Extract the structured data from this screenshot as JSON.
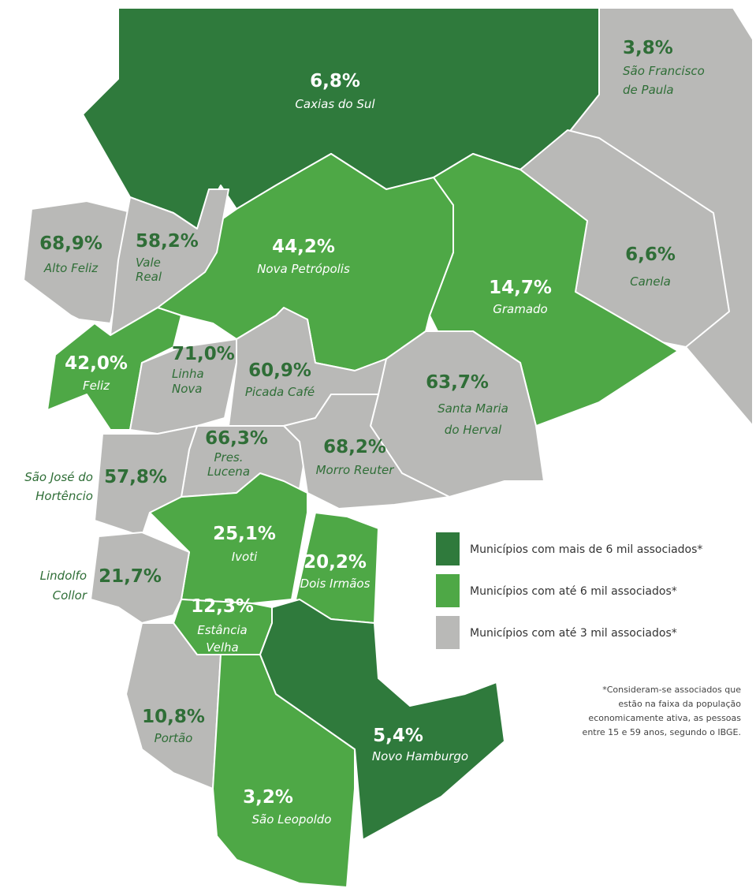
{
  "map": {
    "legend": [
      {
        "color": "#2f7a3c",
        "label": "Municípios com mais de 6 mil associados*"
      },
      {
        "color": "#4ea846",
        "label": "Municípios com até 6 mil associados*"
      },
      {
        "color": "#b9b9b7",
        "label": "Municípios com até 3 mil associados*"
      }
    ],
    "footnote": [
      "*Consideram-se associados que",
      "estão na faixa da população",
      "economicamente ativa, as pessoas",
      "entre 15 e 59 anos, segundo o IBGE."
    ],
    "regions": [
      {
        "value": "6,8%",
        "name": [
          "Caxias do Sul"
        ],
        "legend": 0
      },
      {
        "value": "3,8%",
        "name": [
          "São Francisco",
          "de Paula"
        ],
        "legend": 2
      },
      {
        "value": "6,6%",
        "name": [
          "Canela"
        ],
        "legend": 2
      },
      {
        "value": "14,7%",
        "name": [
          "Gramado"
        ],
        "legend": 1
      },
      {
        "value": "44,2%",
        "name": [
          "Nova Petrópolis"
        ],
        "legend": 1
      },
      {
        "value": "68,9%",
        "name": [
          "Alto Feliz"
        ],
        "legend": 2
      },
      {
        "value": "58,2%",
        "name": [
          "Vale",
          "Real"
        ],
        "legend": 2
      },
      {
        "value": "42,0%",
        "name": [
          "Feliz"
        ],
        "legend": 1
      },
      {
        "value": "71,0%",
        "name": [
          "Linha",
          "Nova"
        ],
        "legend": 2
      },
      {
        "value": "60,9%",
        "name": [
          "Picada Café"
        ],
        "legend": 2
      },
      {
        "value": "63,7%",
        "name": [
          "Santa Maria",
          "do Herval"
        ],
        "legend": 2
      },
      {
        "value": "66,3%",
        "name": [
          "Pres.",
          "Lucena"
        ],
        "legend": 2
      },
      {
        "value": "68,2%",
        "name": [
          "Morro Reuter"
        ],
        "legend": 2
      },
      {
        "value": "57,8%",
        "name": [
          "São José do",
          "Hortêncio"
        ],
        "legend": 2
      },
      {
        "value": "25,1%",
        "name": [
          "Ivoti"
        ],
        "legend": 1
      },
      {
        "value": "20,2%",
        "name": [
          "Dois Irmãos"
        ],
        "legend": 1
      },
      {
        "value": "21,7%",
        "name": [
          "Lindolfo",
          "Collor"
        ],
        "legend": 2
      },
      {
        "value": "12,3%",
        "name": [
          "Estância",
          "Velha"
        ],
        "legend": 1
      },
      {
        "value": "10,8%",
        "name": [
          "Portão"
        ],
        "legend": 2
      },
      {
        "value": "3,2%",
        "name": [
          "São Leopoldo"
        ],
        "legend": 1
      },
      {
        "value": "5,4%",
        "name": [
          "Novo Hamburgo"
        ],
        "legend": 0
      }
    ]
  }
}
